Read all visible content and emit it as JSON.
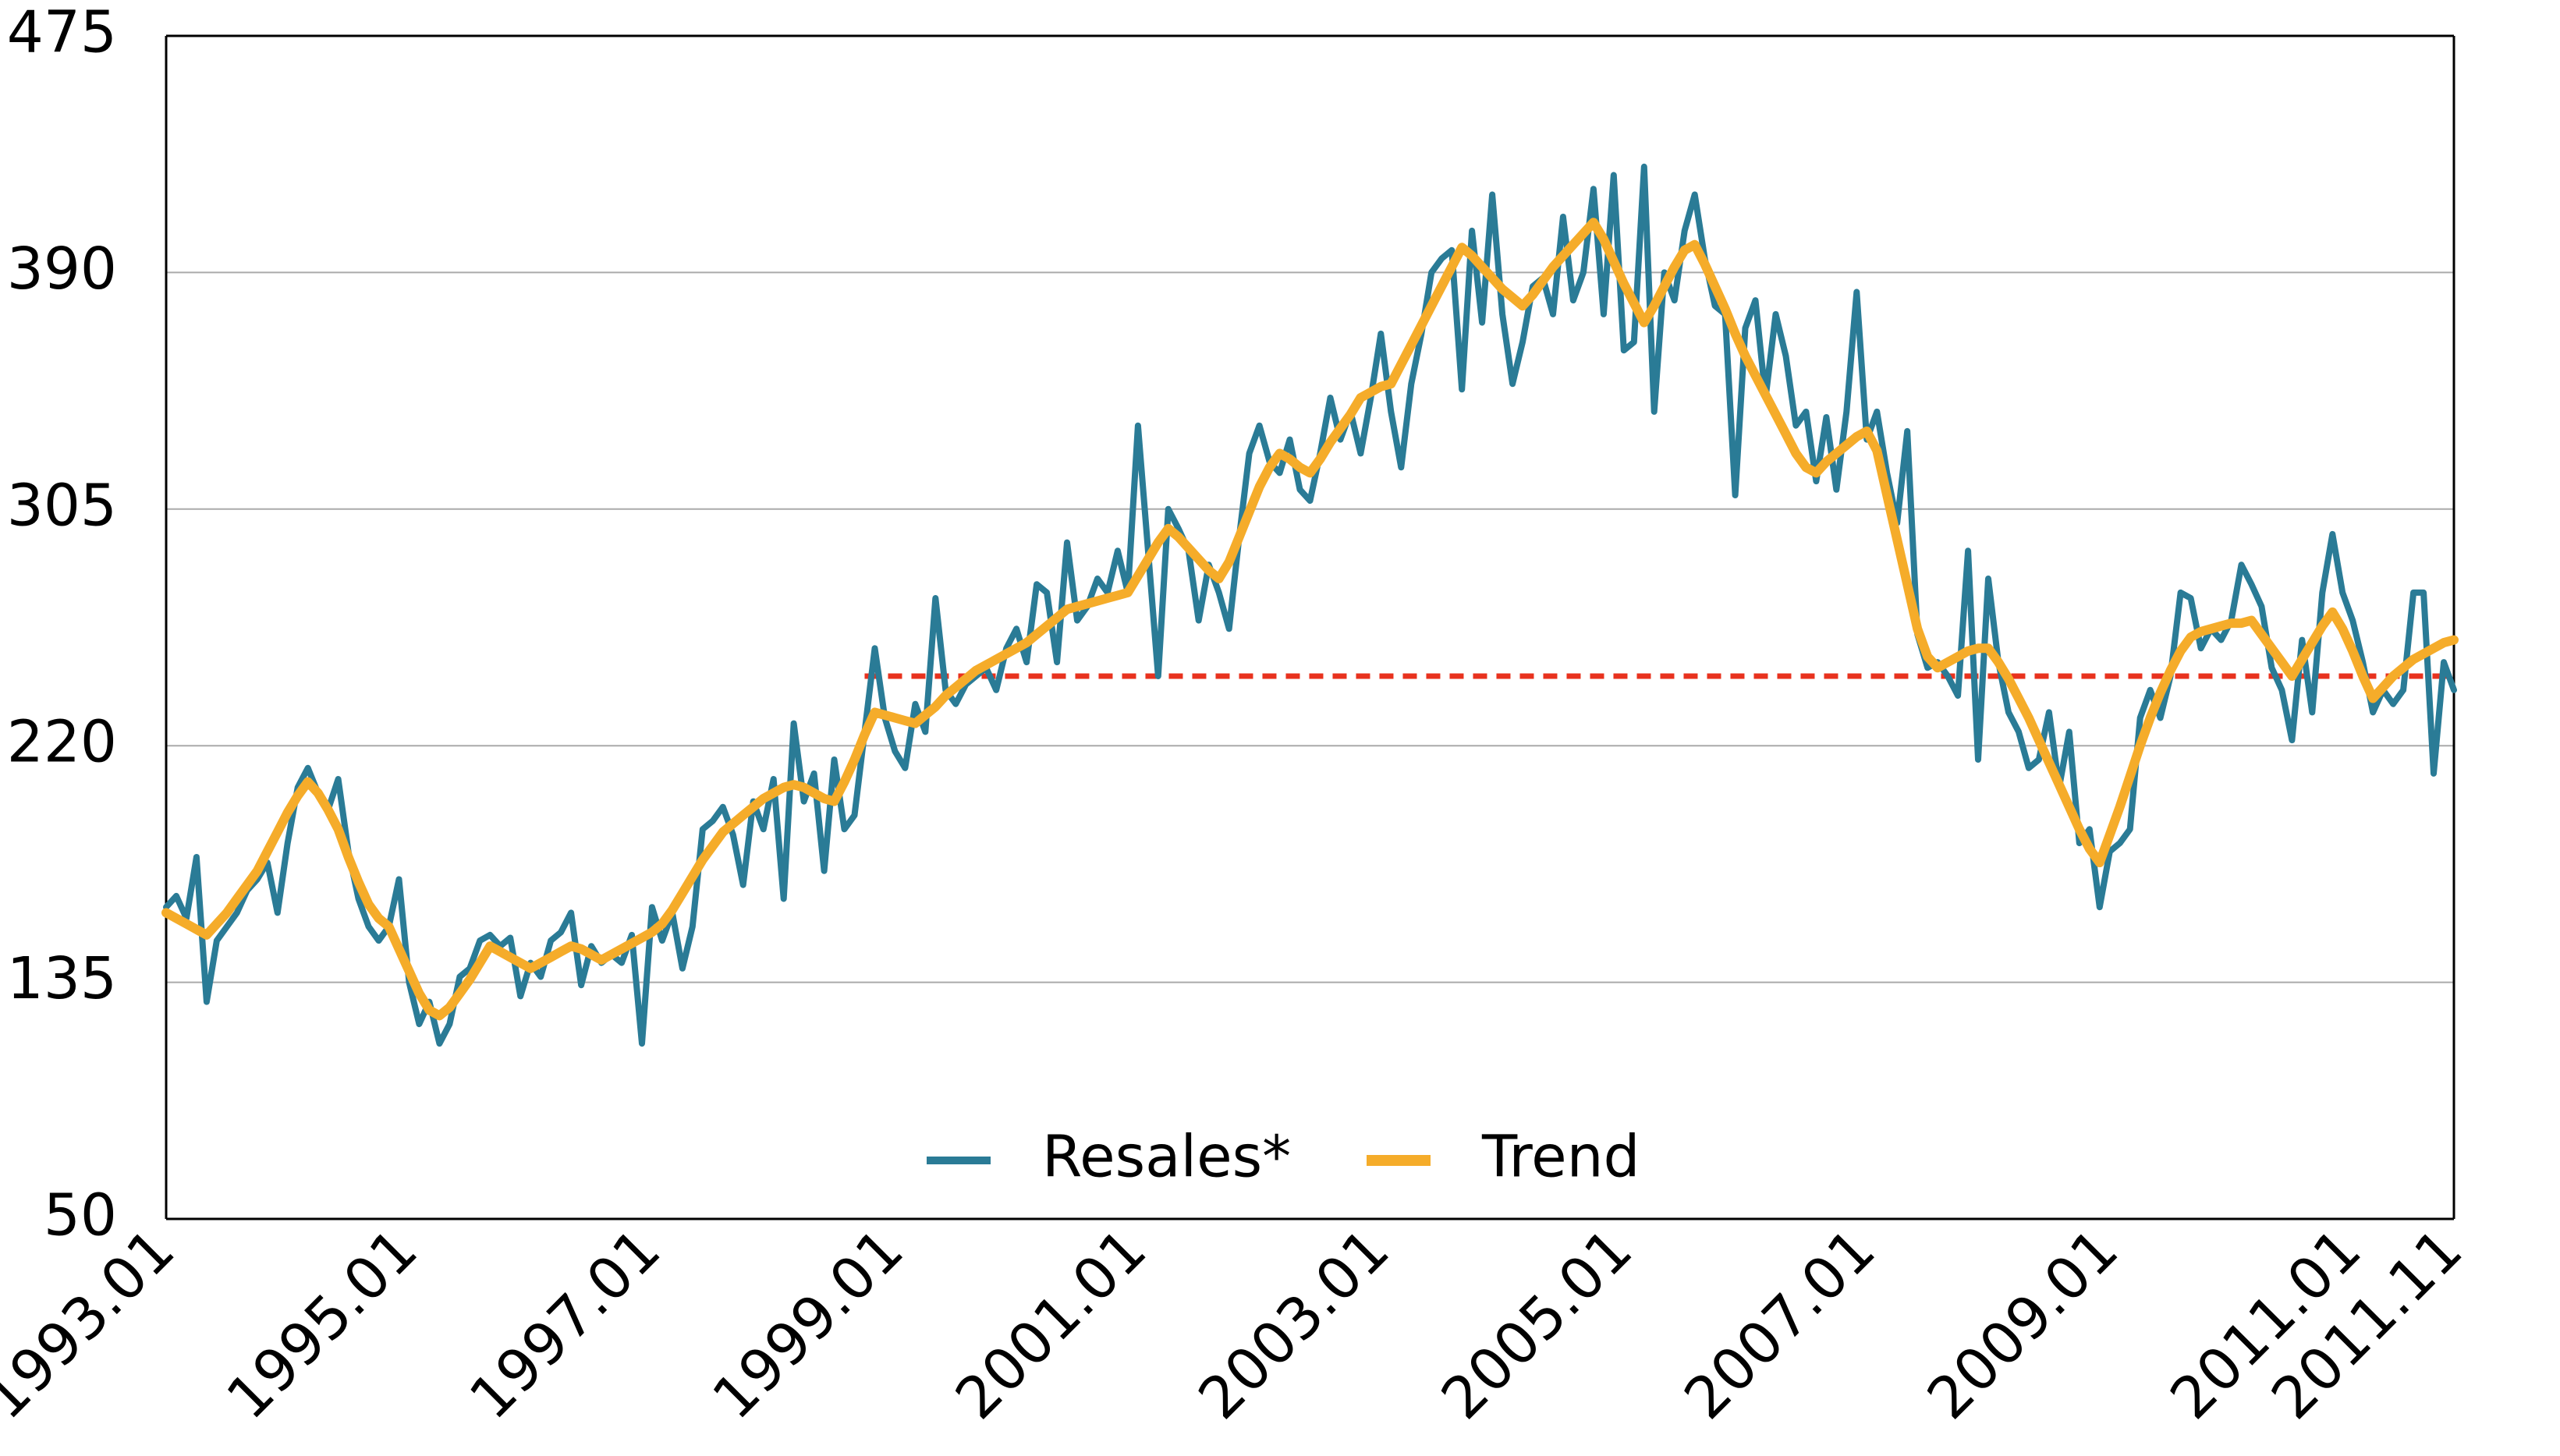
{
  "chart_data": {
    "type": "line",
    "categories": [
      "1993.01",
      null,
      null,
      null,
      null,
      null,
      null,
      null,
      null,
      null,
      null,
      null,
      null,
      null,
      null,
      null,
      null,
      null,
      null,
      null,
      null,
      null,
      null,
      null,
      "1995.01",
      null,
      null,
      null,
      null,
      null,
      null,
      null,
      null,
      null,
      null,
      null,
      null,
      null,
      null,
      null,
      null,
      null,
      null,
      null,
      null,
      null,
      null,
      null,
      "1997.01",
      null,
      null,
      null,
      null,
      null,
      null,
      null,
      null,
      null,
      null,
      null,
      null,
      null,
      null,
      null,
      null,
      null,
      null,
      null,
      null,
      null,
      null,
      null,
      "1999.01",
      null,
      null,
      null,
      null,
      null,
      null,
      null,
      null,
      null,
      null,
      null,
      null,
      null,
      null,
      null,
      null,
      null,
      null,
      null,
      null,
      null,
      null,
      null,
      "2001.01",
      null,
      null,
      null,
      null,
      null,
      null,
      null,
      null,
      null,
      null,
      null,
      null,
      null,
      null,
      null,
      null,
      null,
      null,
      null,
      null,
      null,
      null,
      null,
      "2003.01",
      null,
      null,
      null,
      null,
      null,
      null,
      null,
      null,
      null,
      null,
      null,
      null,
      null,
      null,
      null,
      null,
      null,
      null,
      null,
      null,
      null,
      null,
      null,
      "2005.01",
      null,
      null,
      null,
      null,
      null,
      null,
      null,
      null,
      null,
      null,
      null,
      null,
      null,
      null,
      null,
      null,
      null,
      null,
      null,
      null,
      null,
      null,
      null,
      "2007.01",
      null,
      null,
      null,
      null,
      null,
      null,
      null,
      null,
      null,
      null,
      null,
      null,
      null,
      null,
      null,
      null,
      null,
      null,
      null,
      null,
      null,
      null,
      null,
      "2009.01",
      null,
      null,
      null,
      null,
      null,
      null,
      null,
      null,
      null,
      null,
      null,
      null,
      null,
      null,
      null,
      null,
      null,
      null,
      null,
      null,
      null,
      null,
      null,
      "2011.01",
      null,
      null,
      null,
      null,
      null,
      null,
      null,
      null,
      null,
      "2011.11"
    ],
    "series": [
      {
        "name": "Resales*",
        "color": "#2a7b96",
        "values": [
          162,
          166,
          158,
          180,
          128,
          150,
          155,
          160,
          168,
          172,
          178,
          160,
          185,
          205,
          212,
          203,
          197,
          208,
          182,
          165,
          155,
          150,
          155,
          172,
          135,
          120,
          128,
          113,
          120,
          137,
          140,
          150,
          152,
          148,
          151,
          130,
          142,
          137,
          150,
          153,
          160,
          134,
          148,
          142,
          145,
          142,
          152,
          113,
          162,
          150,
          160,
          140,
          155,
          190,
          193,
          198,
          188,
          170,
          200,
          190,
          208,
          165,
          228,
          200,
          210,
          175,
          215,
          190,
          195,
          225,
          255,
          230,
          218,
          212,
          235,
          225,
          273,
          240,
          235,
          242,
          245,
          248,
          240,
          255,
          262,
          250,
          278,
          275,
          250,
          293,
          265,
          270,
          280,
          275,
          290,
          275,
          335,
          290,
          245,
          305,
          298,
          290,
          265,
          285,
          275,
          262,
          295,
          325,
          335,
          322,
          318,
          330,
          312,
          308,
          325,
          345,
          330,
          340,
          325,
          345,
          368,
          340,
          320,
          350,
          368,
          390,
          395,
          398,
          348,
          405,
          372,
          418,
          375,
          350,
          365,
          385,
          388,
          375,
          410,
          380,
          390,
          420,
          375,
          425,
          362,
          365,
          428,
          340,
          390,
          380,
          405,
          418,
          395,
          378,
          375,
          310,
          370,
          380,
          345,
          375,
          360,
          335,
          340,
          315,
          338,
          312,
          340,
          383,
          330,
          340,
          318,
          300,
          333,
          260,
          248,
          250,
          245,
          238,
          290,
          215,
          280,
          250,
          232,
          225,
          212,
          215,
          232,
          205,
          225,
          185,
          190,
          162,
          182,
          185,
          190,
          230,
          240,
          230,
          245,
          275,
          273,
          255,
          262,
          258,
          265,
          285,
          278,
          270,
          248,
          240,
          222,
          258,
          232,
          275,
          296,
          275,
          265,
          250,
          232,
          240,
          235,
          240,
          275,
          275,
          210,
          250,
          240
        ]
      },
      {
        "name": "Trend",
        "color": "#f5ac2a",
        "values": [
          160,
          158,
          156,
          154,
          152,
          156,
          160,
          165,
          170,
          175,
          182,
          189,
          196,
          202,
          207,
          203,
          197,
          190,
          180,
          171,
          163,
          158,
          155,
          147,
          139,
          131,
          125,
          123,
          126,
          131,
          136,
          142,
          148,
          146,
          144,
          142,
          140,
          142,
          144,
          146,
          148,
          147,
          145,
          143,
          145,
          147,
          149,
          151,
          153,
          156,
          161,
          167,
          173,
          179,
          184,
          189,
          192,
          195,
          198,
          201,
          203,
          205,
          206,
          205,
          203,
          201,
          200,
          207,
          215,
          224,
          232,
          231,
          230,
          229,
          228,
          231,
          234,
          238,
          241,
          244,
          247,
          249,
          251,
          253,
          255,
          257,
          260,
          263,
          266,
          269,
          270,
          271,
          272,
          273,
          274,
          275,
          281,
          287,
          293,
          298,
          295,
          291,
          287,
          283,
          280,
          286,
          295,
          304,
          313,
          320,
          325,
          323,
          320,
          318,
          323,
          329,
          334,
          339,
          345,
          347,
          349,
          350,
          357,
          364,
          371,
          378,
          385,
          392,
          399,
          396,
          392,
          388,
          384,
          381,
          378,
          382,
          387,
          392,
          396,
          400,
          404,
          408,
          402,
          394,
          386,
          379,
          372,
          378,
          385,
          392,
          398,
          400,
          393,
          385,
          377,
          368,
          360,
          353,
          346,
          339,
          332,
          325,
          320,
          318,
          322,
          325,
          328,
          331,
          333,
          326,
          310,
          294,
          278,
          262,
          252,
          248,
          250,
          252,
          254,
          255,
          255,
          250,
          244,
          237,
          230,
          222,
          214,
          206,
          198,
          190,
          183,
          178,
          188,
          198,
          209,
          220,
          230,
          239,
          247,
          254,
          259,
          261,
          262,
          263,
          264,
          264,
          265,
          260,
          255,
          250,
          245,
          251,
          257,
          263,
          268,
          262,
          254,
          245,
          237,
          241,
          245,
          248,
          251,
          253,
          255,
          257,
          258
        ]
      }
    ],
    "reference_line": {
      "value": 245,
      "start_index": 69,
      "color": "#e8321e",
      "style": "dashed"
    },
    "ylim": [
      50,
      475
    ],
    "yticks": [
      50,
      135,
      220,
      305,
      390,
      475
    ],
    "grid": true,
    "legend": "bottom"
  }
}
